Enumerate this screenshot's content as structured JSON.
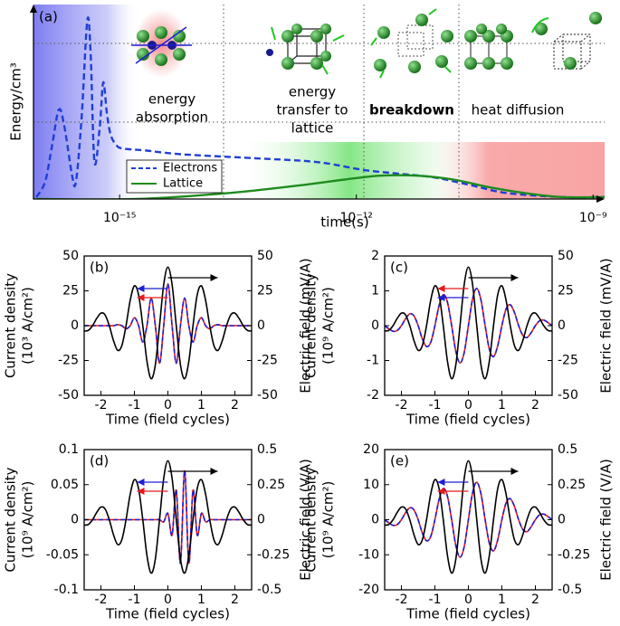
{
  "chart_data": [
    {
      "type": "line",
      "label": "(a)",
      "xscale": "log",
      "xlabel": "time(s)",
      "ylabel": "Energy/cm³",
      "xlim": [
        8.1e-17,
        1.4e-09
      ],
      "ylim": [
        0,
        1
      ],
      "xticks": [
        {
          "value": 1e-15,
          "label": "10⁻¹⁵"
        },
        {
          "value": 1e-12,
          "label": "10⁻¹²"
        },
        {
          "value": 1e-09,
          "label": "10⁻⁹"
        }
      ],
      "legend": "lower left",
      "series": [
        {
          "name": "Electrons",
          "color": "#1f3fd6",
          "dash": true,
          "x": [
            8.8e-17,
            1.14e-16,
            1.4e-16,
            1.7e-16,
            2e-16,
            2.5e-16,
            2.8e-16,
            3.3e-16,
            3.9e-16,
            4.3e-16,
            4.8e-16,
            5.6e-16,
            6.2e-16,
            6.9e-16,
            7.7e-16,
            9e-16,
            1.08e-15,
            2.1e-15,
            6.1e-15,
            5e-14,
            3.2e-13,
            1.2e-12,
            3.5e-12,
            1e-11,
            2.9e-11,
            8.3e-11,
            4.1e-10,
            1.4e-09
          ],
          "values": [
            0.01,
            0.09,
            0.28,
            0.46,
            0.37,
            0.12,
            0.09,
            0.42,
            0.92,
            0.74,
            0.19,
            0.37,
            0.6,
            0.44,
            0.33,
            0.28,
            0.26,
            0.25,
            0.23,
            0.21,
            0.19,
            0.15,
            0.13,
            0.11,
            0.07,
            0.03,
            0.01,
            0.01
          ]
        },
        {
          "name": "Lattice",
          "color": "#1e8c1e",
          "x": [
            8.8e-17,
            1.6e-15,
            2.3e-14,
            1.9e-13,
            7.1e-13,
            2e-12,
            5.9e-12,
            1.7e-11,
            4.9e-11,
            1.4e-10,
            4.1e-10,
            1.4e-09
          ],
          "values": [
            0,
            0,
            0.03,
            0.07,
            0.1,
            0.12,
            0.12,
            0.1,
            0.06,
            0.03,
            0.01,
            0.01
          ]
        }
      ],
      "annotations": [
        {
          "text": [
            "energy",
            "absorption"
          ],
          "color": "#1c1cd6"
        },
        {
          "text": [
            "energy",
            "transfer to",
            "lattice"
          ],
          "color": "#2a9a2a"
        },
        {
          "text": [
            "breakdown"
          ],
          "color": "#e8141c",
          "bold": true
        },
        {
          "text": [
            "heat diffusion"
          ],
          "color": "#8b1a1a"
        }
      ]
    },
    {
      "type": "line",
      "label": "(b)",
      "xlabel": "Time (field cycles)",
      "ylabel": [
        "Current density",
        "(10³ A/cm²)"
      ],
      "y2label": "Electric field (mV/A)",
      "xlim": [
        -2.5,
        2.5
      ],
      "xticks": [
        -2,
        -1,
        0,
        1,
        2
      ],
      "ylim": [
        -50,
        50
      ],
      "yticks": [
        -50,
        -25,
        0,
        25,
        50
      ],
      "y2lim": [
        -50,
        50
      ],
      "y2ticks": [
        -50,
        -25,
        0,
        25,
        50
      ],
      "x": [
        -2.5,
        -2.375,
        -2.25,
        -2.125,
        -2,
        -1.875,
        -1.75,
        -1.625,
        -1.5,
        -1.375,
        -1.25,
        -1.125,
        -1,
        -0.875,
        -0.75,
        -0.625,
        -0.5,
        -0.375,
        -0.25,
        -0.125,
        0,
        0.125,
        0.25,
        0.375,
        0.5,
        0.625,
        0.75,
        0.875,
        1,
        1.125,
        1.25,
        1.375,
        1.5,
        1.625,
        1.75,
        1.875,
        2,
        2.125,
        2.25,
        2.375,
        2.5
      ],
      "series": [
        {
          "color": "#e41a1c",
          "values": [
            0,
            0,
            0,
            0,
            0,
            0,
            0,
            0,
            0.7,
            0,
            -2.2,
            0,
            5.7,
            0,
            -11.8,
            0,
            19.8,
            0,
            -27,
            0,
            30,
            0,
            -27,
            0,
            19.8,
            0,
            -11.8,
            0,
            5.7,
            0,
            -2.2,
            0,
            0.7,
            0,
            0,
            0,
            0,
            0,
            0,
            0,
            0
          ]
        },
        {
          "color": "#1f1fd0",
          "dash": true,
          "values": [
            0,
            0,
            0,
            0,
            0,
            0,
            0,
            0,
            0.7,
            0,
            -2.2,
            0,
            5.7,
            0,
            -11.8,
            0,
            19.8,
            0,
            -27,
            0,
            30,
            0,
            -27,
            0,
            19.8,
            0,
            -11.8,
            0,
            5.7,
            0,
            -2.2,
            0,
            0.7,
            0,
            0,
            0,
            0,
            0,
            0,
            0,
            0
          ]
        },
        {
          "color": "#000000",
          "axis": "y2",
          "values": [
            -3.8,
            -3.4,
            0,
            5.2,
            9.0,
            7.7,
            0,
            -10.7,
            -17.7,
            -14.3,
            0,
            18.3,
            28.6,
            22.1,
            0,
            -25.6,
            -38.1,
            -28.1,
            0,
            29.5,
            42,
            29.5,
            0,
            -28.1,
            -38.1,
            -25.6,
            0,
            22.1,
            28.6,
            18.3,
            0,
            -14.3,
            -17.7,
            -10.7,
            0,
            7.7,
            9.0,
            5.2,
            0,
            -3.4,
            -3.8
          ]
        }
      ]
    },
    {
      "type": "line",
      "label": "(c)",
      "xlabel": "Time (field cycles)",
      "ylabel": [
        "Current density",
        "(10⁹ A/cm²)"
      ],
      "y2label": "Electric field (mV/A)",
      "xlim": [
        -2.5,
        2.5
      ],
      "xticks": [
        -2,
        -1,
        0,
        1,
        2
      ],
      "ylim": [
        -2,
        2
      ],
      "yticks": [
        -2,
        -1,
        0,
        1,
        2
      ],
      "y2lim": [
        -50,
        50
      ],
      "y2ticks": [
        -50,
        -25,
        0,
        25,
        50
      ],
      "x": [
        -2.5,
        -2.375,
        -2.25,
        -2.125,
        -2,
        -1.875,
        -1.75,
        -1.625,
        -1.5,
        -1.375,
        -1.25,
        -1.125,
        -1,
        -0.875,
        -0.75,
        -0.625,
        -0.5,
        -0.375,
        -0.25,
        -0.125,
        0,
        0.125,
        0.25,
        0.375,
        0.5,
        0.625,
        0.75,
        0.875,
        1,
        1.125,
        1.25,
        1.375,
        1.5,
        1.625,
        1.75,
        1.875,
        2,
        2.125,
        2.25,
        2.375,
        2.5
      ],
      "series": [
        {
          "color": "#e41a1c",
          "values": [
            0,
            -0.09,
            -0.16,
            -0.14,
            0,
            0.2,
            0.34,
            0.28,
            0,
            -0.38,
            -0.6,
            -0.48,
            0,
            0.58,
            0.89,
            0.67,
            0,
            -0.74,
            -1.07,
            -0.77,
            0,
            0.77,
            1.07,
            0.74,
            0,
            -0.67,
            -0.89,
            -0.58,
            0,
            0.48,
            0.6,
            0.38,
            0,
            -0.28,
            -0.34,
            -0.2,
            0,
            0.14,
            0.16,
            0.09,
            0
          ]
        },
        {
          "color": "#1f1fd0",
          "dash": true,
          "values": [
            0,
            -0.09,
            -0.16,
            -0.14,
            0,
            0.2,
            0.34,
            0.28,
            0,
            -0.38,
            -0.6,
            -0.48,
            0,
            0.58,
            0.89,
            0.67,
            0,
            -0.74,
            -1.07,
            -0.77,
            0,
            0.77,
            1.07,
            0.74,
            0,
            -0.67,
            -0.89,
            -0.58,
            0,
            0.48,
            0.6,
            0.38,
            0,
            -0.28,
            -0.34,
            -0.2,
            0,
            0.14,
            0.16,
            0.09,
            0
          ]
        },
        {
          "color": "#000000",
          "axis": "y2",
          "values": [
            -3.8,
            -3.4,
            0,
            5.2,
            9.0,
            7.7,
            0,
            -10.7,
            -17.7,
            -14.3,
            0,
            18.3,
            28.6,
            22.1,
            0,
            -25.6,
            -38.1,
            -28.1,
            0,
            29.5,
            42,
            29.5,
            0,
            -28.1,
            -38.1,
            -25.6,
            0,
            22.1,
            28.6,
            18.3,
            0,
            -14.3,
            -17.7,
            -10.7,
            0,
            7.7,
            9.0,
            5.2,
            0,
            -3.4,
            -3.8
          ]
        }
      ]
    },
    {
      "type": "line",
      "label": "(d)",
      "xlabel": "Time (field cycles)",
      "ylabel": [
        "Current density",
        "(10⁹ A/cm²)"
      ],
      "y2label": "Electric field (V/A)",
      "xlim": [
        -2.5,
        2.5
      ],
      "xticks": [
        -2,
        -1,
        0,
        1,
        2
      ],
      "ylim": [
        -0.1,
        0.1
      ],
      "yticks": [
        -0.1,
        -0.05,
        0,
        0.05,
        0.1
      ],
      "y2lim": [
        -0.5,
        0.5
      ],
      "y2ticks": [
        -0.5,
        -0.25,
        0,
        0.25,
        0.5
      ],
      "x": [
        -2.5,
        -2.375,
        -2.25,
        -2.125,
        -2,
        -1.875,
        -1.75,
        -1.625,
        -1.5,
        -1.375,
        -1.25,
        -1.125,
        -1,
        -0.875,
        -0.75,
        -0.625,
        -0.5,
        -0.375,
        -0.25,
        -0.125,
        0,
        0.125,
        0.25,
        0.375,
        0.5,
        0.625,
        0.75,
        0.875,
        1,
        1.125,
        1.25,
        1.375,
        1.5,
        1.625,
        1.75,
        1.875,
        2,
        2.125,
        2.25,
        2.375,
        2.5
      ],
      "series": [
        {
          "color": "#e41a1c",
          "values": [
            0,
            0,
            0,
            0,
            0,
            0,
            0,
            0,
            0,
            0,
            0,
            0,
            0,
            0,
            0,
            0,
            0,
            0,
            0,
            -0.003,
            0.009,
            -0.022,
            0.042,
            -0.062,
            0.07,
            -0.062,
            0.042,
            -0.022,
            0.009,
            -0.003,
            0,
            0,
            0,
            0,
            0,
            0,
            0,
            0,
            0,
            0,
            0
          ]
        },
        {
          "color": "#1f1fd0",
          "dash": true,
          "values": [
            0,
            0,
            0,
            0,
            0,
            0,
            0,
            0,
            0,
            0,
            0,
            0,
            0,
            0,
            0,
            0,
            0,
            0,
            0,
            -0.003,
            0.009,
            -0.022,
            0.042,
            -0.062,
            0.07,
            -0.062,
            0.042,
            -0.022,
            0.009,
            -0.003,
            0,
            0,
            0,
            0,
            0,
            0,
            0,
            0,
            0,
            0,
            0
          ]
        },
        {
          "color": "#000000",
          "axis": "y2",
          "values": [
            -0.038,
            -0.034,
            0,
            0.052,
            0.09,
            0.077,
            0,
            -0.107,
            -0.177,
            -0.143,
            0,
            0.183,
            0.286,
            0.221,
            0,
            -0.256,
            -0.381,
            -0.281,
            0,
            0.295,
            0.42,
            0.295,
            0,
            -0.281,
            -0.381,
            -0.256,
            0,
            0.221,
            0.286,
            0.183,
            0,
            -0.143,
            -0.177,
            -0.107,
            0,
            0.077,
            0.09,
            0.052,
            0,
            -0.034,
            -0.038
          ]
        }
      ]
    },
    {
      "type": "line",
      "label": "(e)",
      "xlabel": "Time (field cycles)",
      "ylabel": [
        "Current density",
        "(10⁹ A/cm²)"
      ],
      "y2label": "Electric field (V/A)",
      "xlim": [
        -2.5,
        2.5
      ],
      "xticks": [
        -2,
        -1,
        0,
        1,
        2
      ],
      "ylim": [
        -20,
        20
      ],
      "yticks": [
        -20,
        -10,
        0,
        10,
        20
      ],
      "y2lim": [
        -0.5,
        0.5
      ],
      "y2ticks": [
        -0.5,
        -0.25,
        0,
        0.25,
        0.5
      ],
      "x": [
        -2.5,
        -2.375,
        -2.25,
        -2.125,
        -2,
        -1.875,
        -1.75,
        -1.625,
        -1.5,
        -1.375,
        -1.25,
        -1.125,
        -1,
        -0.875,
        -0.75,
        -0.625,
        -0.5,
        -0.375,
        -0.25,
        -0.125,
        0,
        0.125,
        0.25,
        0.375,
        0.5,
        0.625,
        0.75,
        0.875,
        1,
        1.125,
        1.25,
        1.375,
        1.5,
        1.625,
        1.75,
        1.875,
        2,
        2.125,
        2.25,
        2.375,
        2.5
      ],
      "series": [
        {
          "color": "#e41a1c",
          "values": [
            0,
            -0.9,
            -1.6,
            -1.4,
            0,
            2,
            3.4,
            2.8,
            0,
            -3.8,
            -6,
            -4.8,
            0,
            5.8,
            8.9,
            6.7,
            0,
            -7.4,
            -10.7,
            -7.7,
            0,
            7.7,
            10.7,
            7.4,
            0,
            -6.7,
            -8.9,
            -5.8,
            0,
            4.8,
            6,
            3.8,
            0,
            -2.8,
            -3.4,
            -2,
            0,
            1.4,
            1.6,
            0.9,
            0
          ]
        },
        {
          "color": "#1f1fd0",
          "dash": true,
          "values": [
            0,
            -0.9,
            -1.6,
            -1.4,
            0,
            2,
            3.4,
            2.8,
            0,
            -3.8,
            -6,
            -4.8,
            0,
            5.8,
            8.9,
            6.7,
            0,
            -7.4,
            -10.7,
            -7.7,
            0,
            7.7,
            10.7,
            7.4,
            0,
            -6.7,
            -8.9,
            -5.8,
            0,
            4.8,
            6,
            3.8,
            0,
            -2.8,
            -3.4,
            -2,
            0,
            1.4,
            1.6,
            0.9,
            0
          ]
        },
        {
          "color": "#000000",
          "axis": "y2",
          "values": [
            -0.038,
            -0.034,
            0,
            0.052,
            0.09,
            0.077,
            0,
            -0.107,
            -0.177,
            -0.143,
            0,
            0.183,
            0.286,
            0.221,
            0,
            -0.256,
            -0.381,
            -0.281,
            0,
            0.295,
            0.42,
            0.295,
            0,
            -0.281,
            -0.381,
            -0.256,
            0,
            0.221,
            0.286,
            0.183,
            0,
            -0.143,
            -0.177,
            -0.107,
            0,
            0.077,
            0.09,
            0.052,
            0,
            -0.034,
            -0.038
          ]
        }
      ]
    }
  ]
}
